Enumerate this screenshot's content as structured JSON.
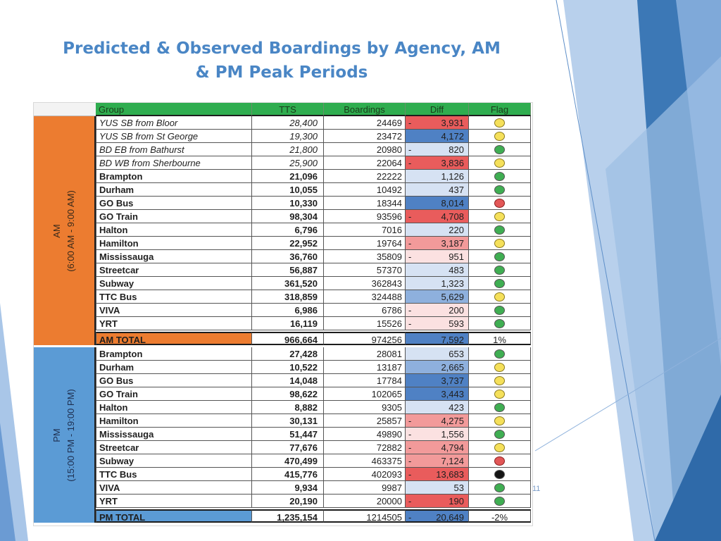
{
  "slide": {
    "title_line1": "Predicted & Observed Boardings by Agency, AM",
    "title_line2": "& PM Peak Periods",
    "page_number": "11"
  },
  "table": {
    "columns": [
      "Group",
      "TTS",
      "Boardings",
      "Diff",
      "Flag"
    ],
    "periods": {
      "am": {
        "label": "AM",
        "range": "(6:00 AM - 9:00 AM)",
        "color": "#ec7c30"
      },
      "pm": {
        "label": "PM",
        "range": "(15:00 PM - 19:00 PM)",
        "color": "#5b9bd5"
      }
    },
    "diff_colors": {
      "pos_strong": "#4f81c4",
      "pos_mid": "#8eb0dd",
      "pos_light": "#d6e2f3",
      "neg_strong": "#e95c5c",
      "neg_mid": "#f29a9a",
      "neg_light": "#fbe1e1"
    },
    "am_rows": [
      {
        "group": "YUS SB from Bloor",
        "tts": "28,400",
        "boardings": "24469",
        "sign": "-",
        "diff": "3,931",
        "diff_tone": "neg_strong",
        "flag": "yellow",
        "italic": true
      },
      {
        "group": "YUS SB from St George",
        "tts": "19,300",
        "boardings": "23472",
        "sign": "",
        "diff": "4,172",
        "diff_tone": "pos_strong",
        "flag": "yellow",
        "italic": true
      },
      {
        "group": "BD EB from Bathurst",
        "tts": "21,800",
        "boardings": "20980",
        "sign": "-",
        "diff": "820",
        "diff_tone": "pos_light",
        "flag": "green",
        "italic": true
      },
      {
        "group": "BD WB from Sherbourne",
        "tts": "25,900",
        "boardings": "22064",
        "sign": "-",
        "diff": "3,836",
        "diff_tone": "neg_strong",
        "flag": "yellow",
        "italic": true
      },
      {
        "group": "Brampton",
        "tts": "21,096",
        "boardings": "22222",
        "sign": "",
        "diff": "1,126",
        "diff_tone": "pos_light",
        "flag": "green",
        "italic": false
      },
      {
        "group": "Durham",
        "tts": "10,055",
        "boardings": "10492",
        "sign": "",
        "diff": "437",
        "diff_tone": "pos_light",
        "flag": "green",
        "italic": false
      },
      {
        "group": "GO Bus",
        "tts": "10,330",
        "boardings": "18344",
        "sign": "",
        "diff": "8,014",
        "diff_tone": "pos_strong",
        "flag": "red",
        "italic": false
      },
      {
        "group": "GO Train",
        "tts": "98,304",
        "boardings": "93596",
        "sign": "-",
        "diff": "4,708",
        "diff_tone": "neg_strong",
        "flag": "yellow",
        "italic": false
      },
      {
        "group": "Halton",
        "tts": "6,796",
        "boardings": "7016",
        "sign": "",
        "diff": "220",
        "diff_tone": "pos_light",
        "flag": "green",
        "italic": false
      },
      {
        "group": "Hamilton",
        "tts": "22,952",
        "boardings": "19764",
        "sign": "-",
        "diff": "3,187",
        "diff_tone": "neg_mid",
        "flag": "yellow",
        "italic": false
      },
      {
        "group": "Mississauga",
        "tts": "36,760",
        "boardings": "35809",
        "sign": "-",
        "diff": "951",
        "diff_tone": "neg_light",
        "flag": "green",
        "italic": false
      },
      {
        "group": "Streetcar",
        "tts": "56,887",
        "boardings": "57370",
        "sign": "",
        "diff": "483",
        "diff_tone": "pos_light",
        "flag": "green",
        "italic": false
      },
      {
        "group": "Subway",
        "tts": "361,520",
        "boardings": "362843",
        "sign": "",
        "diff": "1,323",
        "diff_tone": "pos_light",
        "flag": "green",
        "italic": false
      },
      {
        "group": "TTC Bus",
        "tts": "318,859",
        "boardings": "324488",
        "sign": "",
        "diff": "5,629",
        "diff_tone": "pos_mid",
        "flag": "yellow",
        "italic": false
      },
      {
        "group": "VIVA",
        "tts": "6,986",
        "boardings": "6786",
        "sign": "-",
        "diff": "200",
        "diff_tone": "neg_light",
        "flag": "green",
        "italic": false
      },
      {
        "group": "YRT",
        "tts": "16,119",
        "boardings": "15526",
        "sign": "-",
        "diff": "593",
        "diff_tone": "neg_light",
        "flag": "green",
        "italic": false
      }
    ],
    "am_total": {
      "group": "AM TOTAL",
      "tts": "966,664",
      "boardings": "974256",
      "sign": "",
      "diff": "7,592",
      "diff_tone": "pos_strong",
      "flag_text": "1%"
    },
    "pm_rows": [
      {
        "group": "Brampton",
        "tts": "27,428",
        "boardings": "28081",
        "sign": "",
        "diff": "653",
        "diff_tone": "pos_light",
        "flag": "green",
        "italic": false
      },
      {
        "group": "Durham",
        "tts": "10,522",
        "boardings": "13187",
        "sign": "",
        "diff": "2,665",
        "diff_tone": "pos_mid",
        "flag": "yellow",
        "italic": false
      },
      {
        "group": "GO Bus",
        "tts": "14,048",
        "boardings": "17784",
        "sign": "",
        "diff": "3,737",
        "diff_tone": "pos_strong",
        "flag": "yellow",
        "italic": false
      },
      {
        "group": "GO Train",
        "tts": "98,622",
        "boardings": "102065",
        "sign": "",
        "diff": "3,443",
        "diff_tone": "pos_strong",
        "flag": "yellow",
        "italic": false
      },
      {
        "group": "Halton",
        "tts": "8,882",
        "boardings": "9305",
        "sign": "",
        "diff": "423",
        "diff_tone": "pos_light",
        "flag": "green",
        "italic": false
      },
      {
        "group": "Hamilton",
        "tts": "30,131",
        "boardings": "25857",
        "sign": "-",
        "diff": "4,275",
        "diff_tone": "neg_mid",
        "flag": "yellow",
        "italic": false
      },
      {
        "group": "Mississauga",
        "tts": "51,447",
        "boardings": "49890",
        "sign": "-",
        "diff": "1,556",
        "diff_tone": "neg_light",
        "flag": "green",
        "italic": false
      },
      {
        "group": "Streetcar",
        "tts": "77,676",
        "boardings": "72882",
        "sign": "-",
        "diff": "4,794",
        "diff_tone": "neg_mid",
        "flag": "yellow",
        "italic": false
      },
      {
        "group": "Subway",
        "tts": "470,499",
        "boardings": "463375",
        "sign": "-",
        "diff": "7,124",
        "diff_tone": "neg_mid",
        "flag": "red",
        "italic": false
      },
      {
        "group": "TTC Bus",
        "tts": "415,776",
        "boardings": "402093",
        "sign": "-",
        "diff": "13,683",
        "diff_tone": "neg_strong",
        "flag": "black",
        "italic": false
      },
      {
        "group": "VIVA",
        "tts": "9,934",
        "boardings": "9987",
        "sign": "",
        "diff": "53",
        "diff_tone": "pos_light",
        "flag": "green",
        "italic": false
      },
      {
        "group": "YRT",
        "tts": "20,190",
        "boardings": "20000",
        "sign": "-",
        "diff": "190",
        "diff_tone": "neg_strong",
        "flag": "green",
        "italic": false
      }
    ],
    "pm_total": {
      "group": "PM TOTAL",
      "tts": "1,235,154",
      "boardings": "1214505",
      "sign": "-",
      "diff": "20,649",
      "diff_tone": "pos_strong",
      "flag_text": "-2%"
    }
  }
}
